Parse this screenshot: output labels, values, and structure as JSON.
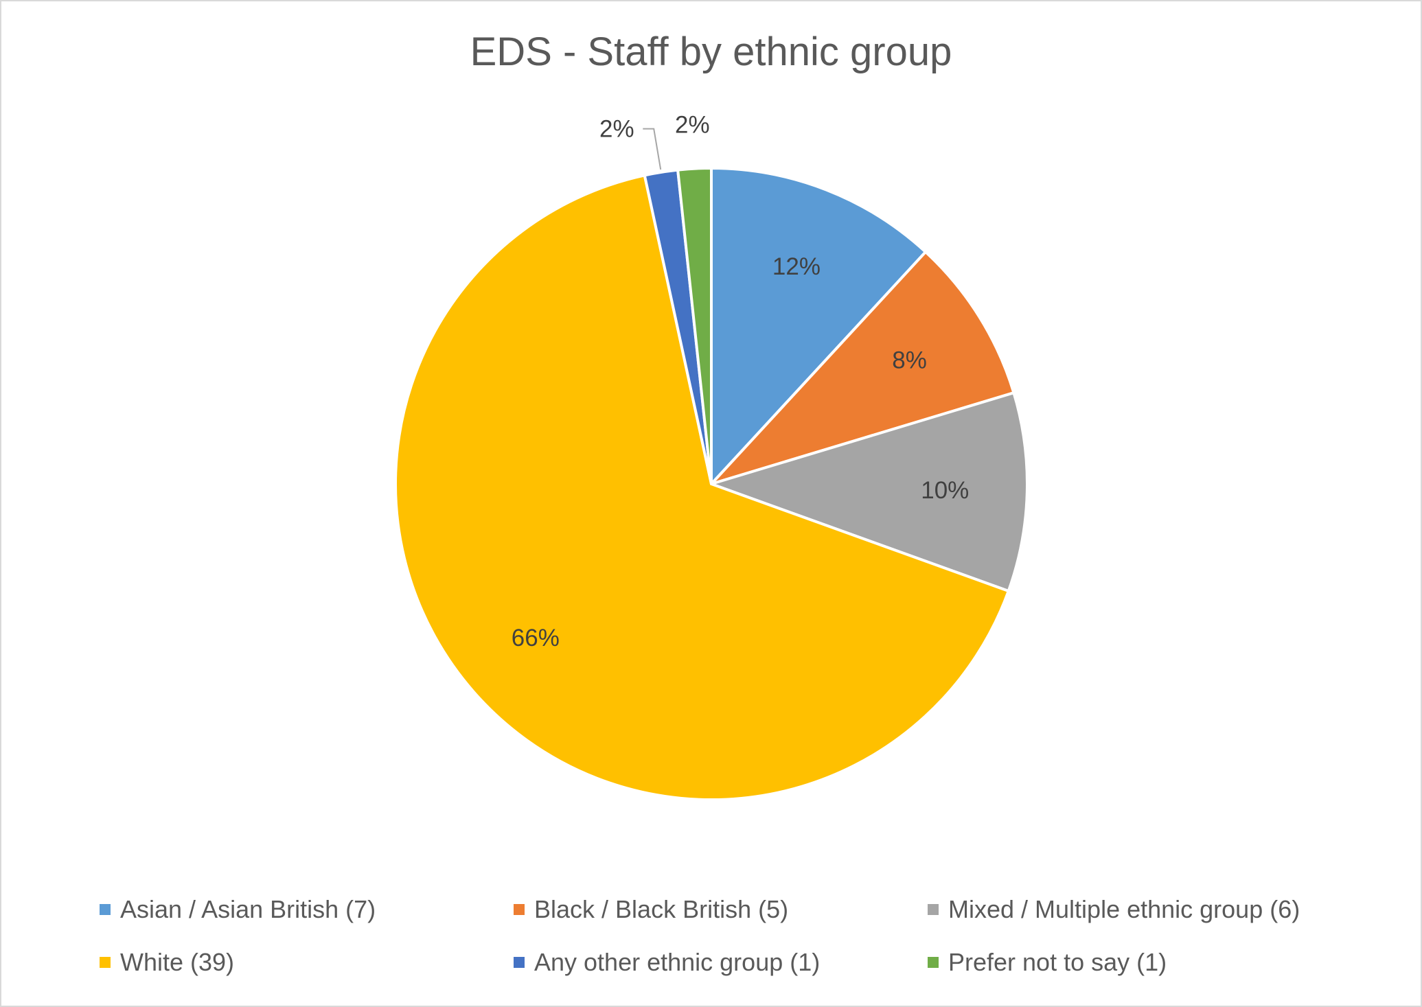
{
  "chart_data": {
    "type": "pie",
    "title": "EDS - Staff by ethnic group",
    "slices": [
      {
        "name": "Asian / Asian British",
        "value": 7,
        "legend": "Asian / Asian British (7)",
        "label": "12%",
        "color": "#5b9bd5"
      },
      {
        "name": "Black / Black British",
        "value": 5,
        "legend": "Black / Black British (5)",
        "label": "8%",
        "color": "#ed7d31"
      },
      {
        "name": "Mixed / Multiple ethnic group",
        "value": 6,
        "legend": "Mixed / Multiple ethnic group (6)",
        "label": "10%",
        "color": "#a5a5a5"
      },
      {
        "name": "White",
        "value": 39,
        "legend": "White (39)",
        "label": "66%",
        "color": "#ffc000"
      },
      {
        "name": "Any other ethnic group",
        "value": 1,
        "legend": "Any other ethnic group (1)",
        "label": "2%",
        "color": "#4472c4"
      },
      {
        "name": "Prefer not to say",
        "value": 1,
        "legend": "Prefer not to say (1)",
        "label": "2%",
        "color": "#70ad47"
      }
    ],
    "legend_position": "bottom",
    "start_angle": "12 o'clock",
    "direction": "clockwise"
  }
}
